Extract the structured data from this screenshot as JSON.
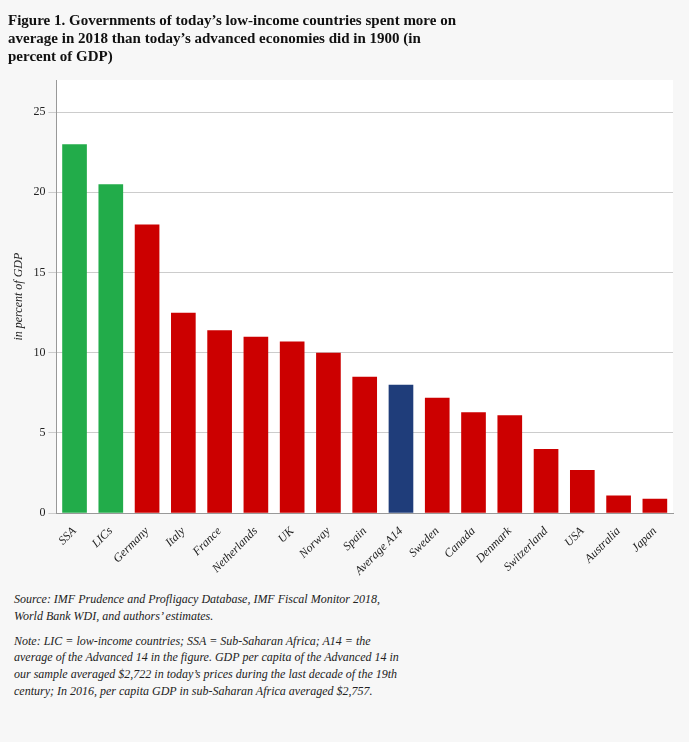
{
  "chart_data": {
    "type": "bar",
    "title": "Figure 1. Governments of today’s low-income countries spent more on\naverage in 2018 than today’s advanced economies did in 1900 (in\npercent of GDP)",
    "ylabel": "in percent of GDP",
    "categories": [
      "SSA",
      "LICs",
      "Germany",
      "Italy",
      "France",
      "Netherlands",
      "UK",
      "Norway",
      "Spain",
      "Average A14",
      "Sweden",
      "Canada",
      "Denmark",
      "Switzerland",
      "USA",
      "Australia",
      "Japan"
    ],
    "values": [
      23.0,
      20.5,
      18.0,
      12.5,
      11.4,
      11.0,
      10.7,
      10.0,
      8.5,
      8.0,
      7.2,
      6.3,
      6.1,
      4.0,
      2.7,
      1.1,
      0.9
    ],
    "colors": [
      "#22ac4a",
      "#22ac4a",
      "#cc0000",
      "#cc0000",
      "#cc0000",
      "#cc0000",
      "#cc0000",
      "#cc0000",
      "#cc0000",
      "#1f3d7a",
      "#cc0000",
      "#cc0000",
      "#cc0000",
      "#cc0000",
      "#cc0000",
      "#cc0000",
      "#cc0000"
    ],
    "ylim": [
      0,
      27
    ],
    "yticks": [
      0,
      5,
      10,
      15,
      20,
      25
    ],
    "grid": true,
    "annotations": [
      "Source: IMF Prudence and Profligacy Database, IMF Fiscal Monitor 2018,\nWorld Bank WDI, and authors’ estimates.",
      "Note: LIC = low-income countries; SSA = Sub-Saharan Africa; A14 = the\naverage of the Advanced 14 in the figure. GDP per capita of the Advanced 14 in\nour sample averaged $2,722 in today’s prices during the last decade of the 19th\ncentury; In 2016, per capita GDP in sub-Saharan Africa averaged $2,757."
    ]
  }
}
